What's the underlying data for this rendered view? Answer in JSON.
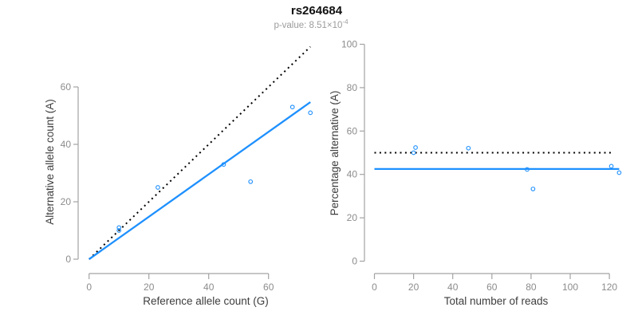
{
  "header": {
    "title": "rs264684",
    "subtitle_prefix": "p-value: 8.51×10",
    "subtitle_exponent": "-4"
  },
  "colors": {
    "point": "#1E90FF",
    "fit_line": "#1E90FF",
    "reference_line": "#000000",
    "axis": "#A3A3A3",
    "tick_label": "#8C8C8C",
    "axis_title": "#3D3D3D",
    "title": "#111111",
    "subtitle": "#9B9B9B"
  },
  "chart_data": [
    {
      "type": "scatter",
      "title": "",
      "xlabel": "Reference allele count (G)",
      "ylabel": "Alternative allele count (A)",
      "xlim": [
        0,
        76
      ],
      "ylim": [
        0,
        75
      ],
      "xticks": [
        0,
        20,
        40,
        60
      ],
      "yticks": [
        0,
        20,
        40,
        60
      ],
      "grid": false,
      "legend": "none",
      "marker": "open-circle",
      "points": [
        [
          10,
          10
        ],
        [
          10,
          11
        ],
        [
          23,
          25
        ],
        [
          45,
          33
        ],
        [
          54,
          27
        ],
        [
          68,
          53
        ],
        [
          74,
          51
        ]
      ],
      "lines": [
        {
          "name": "identity-line",
          "style": "dotted",
          "color": "#000000",
          "from": [
            0,
            0
          ],
          "to": [
            74,
            74
          ]
        },
        {
          "name": "fit-line",
          "style": "solid",
          "color": "#1E90FF",
          "from": [
            0,
            0
          ],
          "to": [
            74,
            54.7
          ]
        }
      ]
    },
    {
      "type": "scatter",
      "title": "",
      "xlabel": "Total number of reads",
      "ylabel": "Percentage alternative (A)",
      "xlim": [
        0,
        128
      ],
      "ylim": [
        0,
        100
      ],
      "xticks": [
        0,
        20,
        40,
        60,
        80,
        100,
        120
      ],
      "yticks": [
        0,
        20,
        40,
        60,
        80,
        100
      ],
      "grid": false,
      "legend": "none",
      "marker": "open-circle",
      "points": [
        [
          20,
          50
        ],
        [
          21,
          52.4
        ],
        [
          48,
          52.1
        ],
        [
          78,
          42.3
        ],
        [
          81,
          33.3
        ],
        [
          121,
          43.8
        ],
        [
          125,
          40.8
        ]
      ],
      "lines": [
        {
          "name": "expected-percentage-line",
          "style": "dotted",
          "color": "#000000",
          "from": [
            0,
            50
          ],
          "to": [
            122,
            50
          ]
        },
        {
          "name": "fit-line",
          "style": "solid",
          "color": "#1E90FF",
          "from": [
            0,
            42.5
          ],
          "to": [
            125,
            42.5
          ]
        }
      ]
    }
  ]
}
